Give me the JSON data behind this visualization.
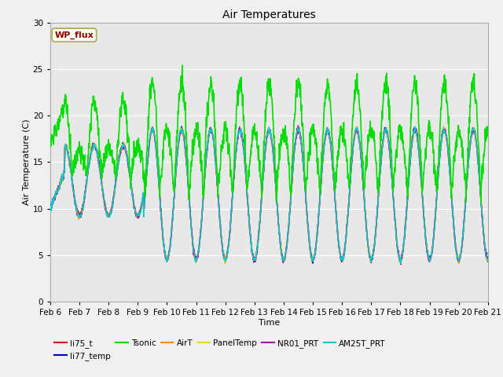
{
  "title": "Air Temperatures",
  "xlabel": "Time",
  "ylabel": "Air Temperature (C)",
  "ylim": [
    0,
    30
  ],
  "xlim": [
    0,
    15
  ],
  "fig_bg_color": "#f0f0f0",
  "plot_bg_color": "#e8e8e8",
  "x_tick_labels": [
    "Feb 6",
    "Feb 7",
    "Feb 8",
    "Feb 9",
    "Feb 10",
    "Feb 11",
    "Feb 12",
    "Feb 13",
    "Feb 14",
    "Feb 15",
    "Feb 16",
    "Feb 17",
    "Feb 18",
    "Feb 19",
    "Feb 20",
    "Feb 21"
  ],
  "annotation_text": "WP_flux",
  "annotation_color": "#8b0000",
  "annotation_bg": "#fffff0",
  "annotation_edge": "#aaaa44",
  "series": {
    "li75_t": {
      "color": "#dd0000",
      "lw": 1.0
    },
    "li77_temp": {
      "color": "#0000bb",
      "lw": 1.0
    },
    "Tsonic": {
      "color": "#00dd00",
      "lw": 1.2
    },
    "AirT": {
      "color": "#ff8800",
      "lw": 1.0
    },
    "PanelTemp": {
      "color": "#dddd00",
      "lw": 1.0
    },
    "NR01_PRT": {
      "color": "#aa00aa",
      "lw": 1.0
    },
    "AM25T_PRT": {
      "color": "#00cccc",
      "lw": 1.0
    }
  },
  "legend_entries": [
    "li75_t",
    "li77_temp",
    "Tsonic",
    "AirT",
    "PanelTemp",
    "NR01_PRT",
    "AM25T_PRT"
  ],
  "legend_colors": [
    "#dd0000",
    "#0000bb",
    "#00dd00",
    "#ff8800",
    "#dddd00",
    "#aa00aa",
    "#00cccc"
  ]
}
